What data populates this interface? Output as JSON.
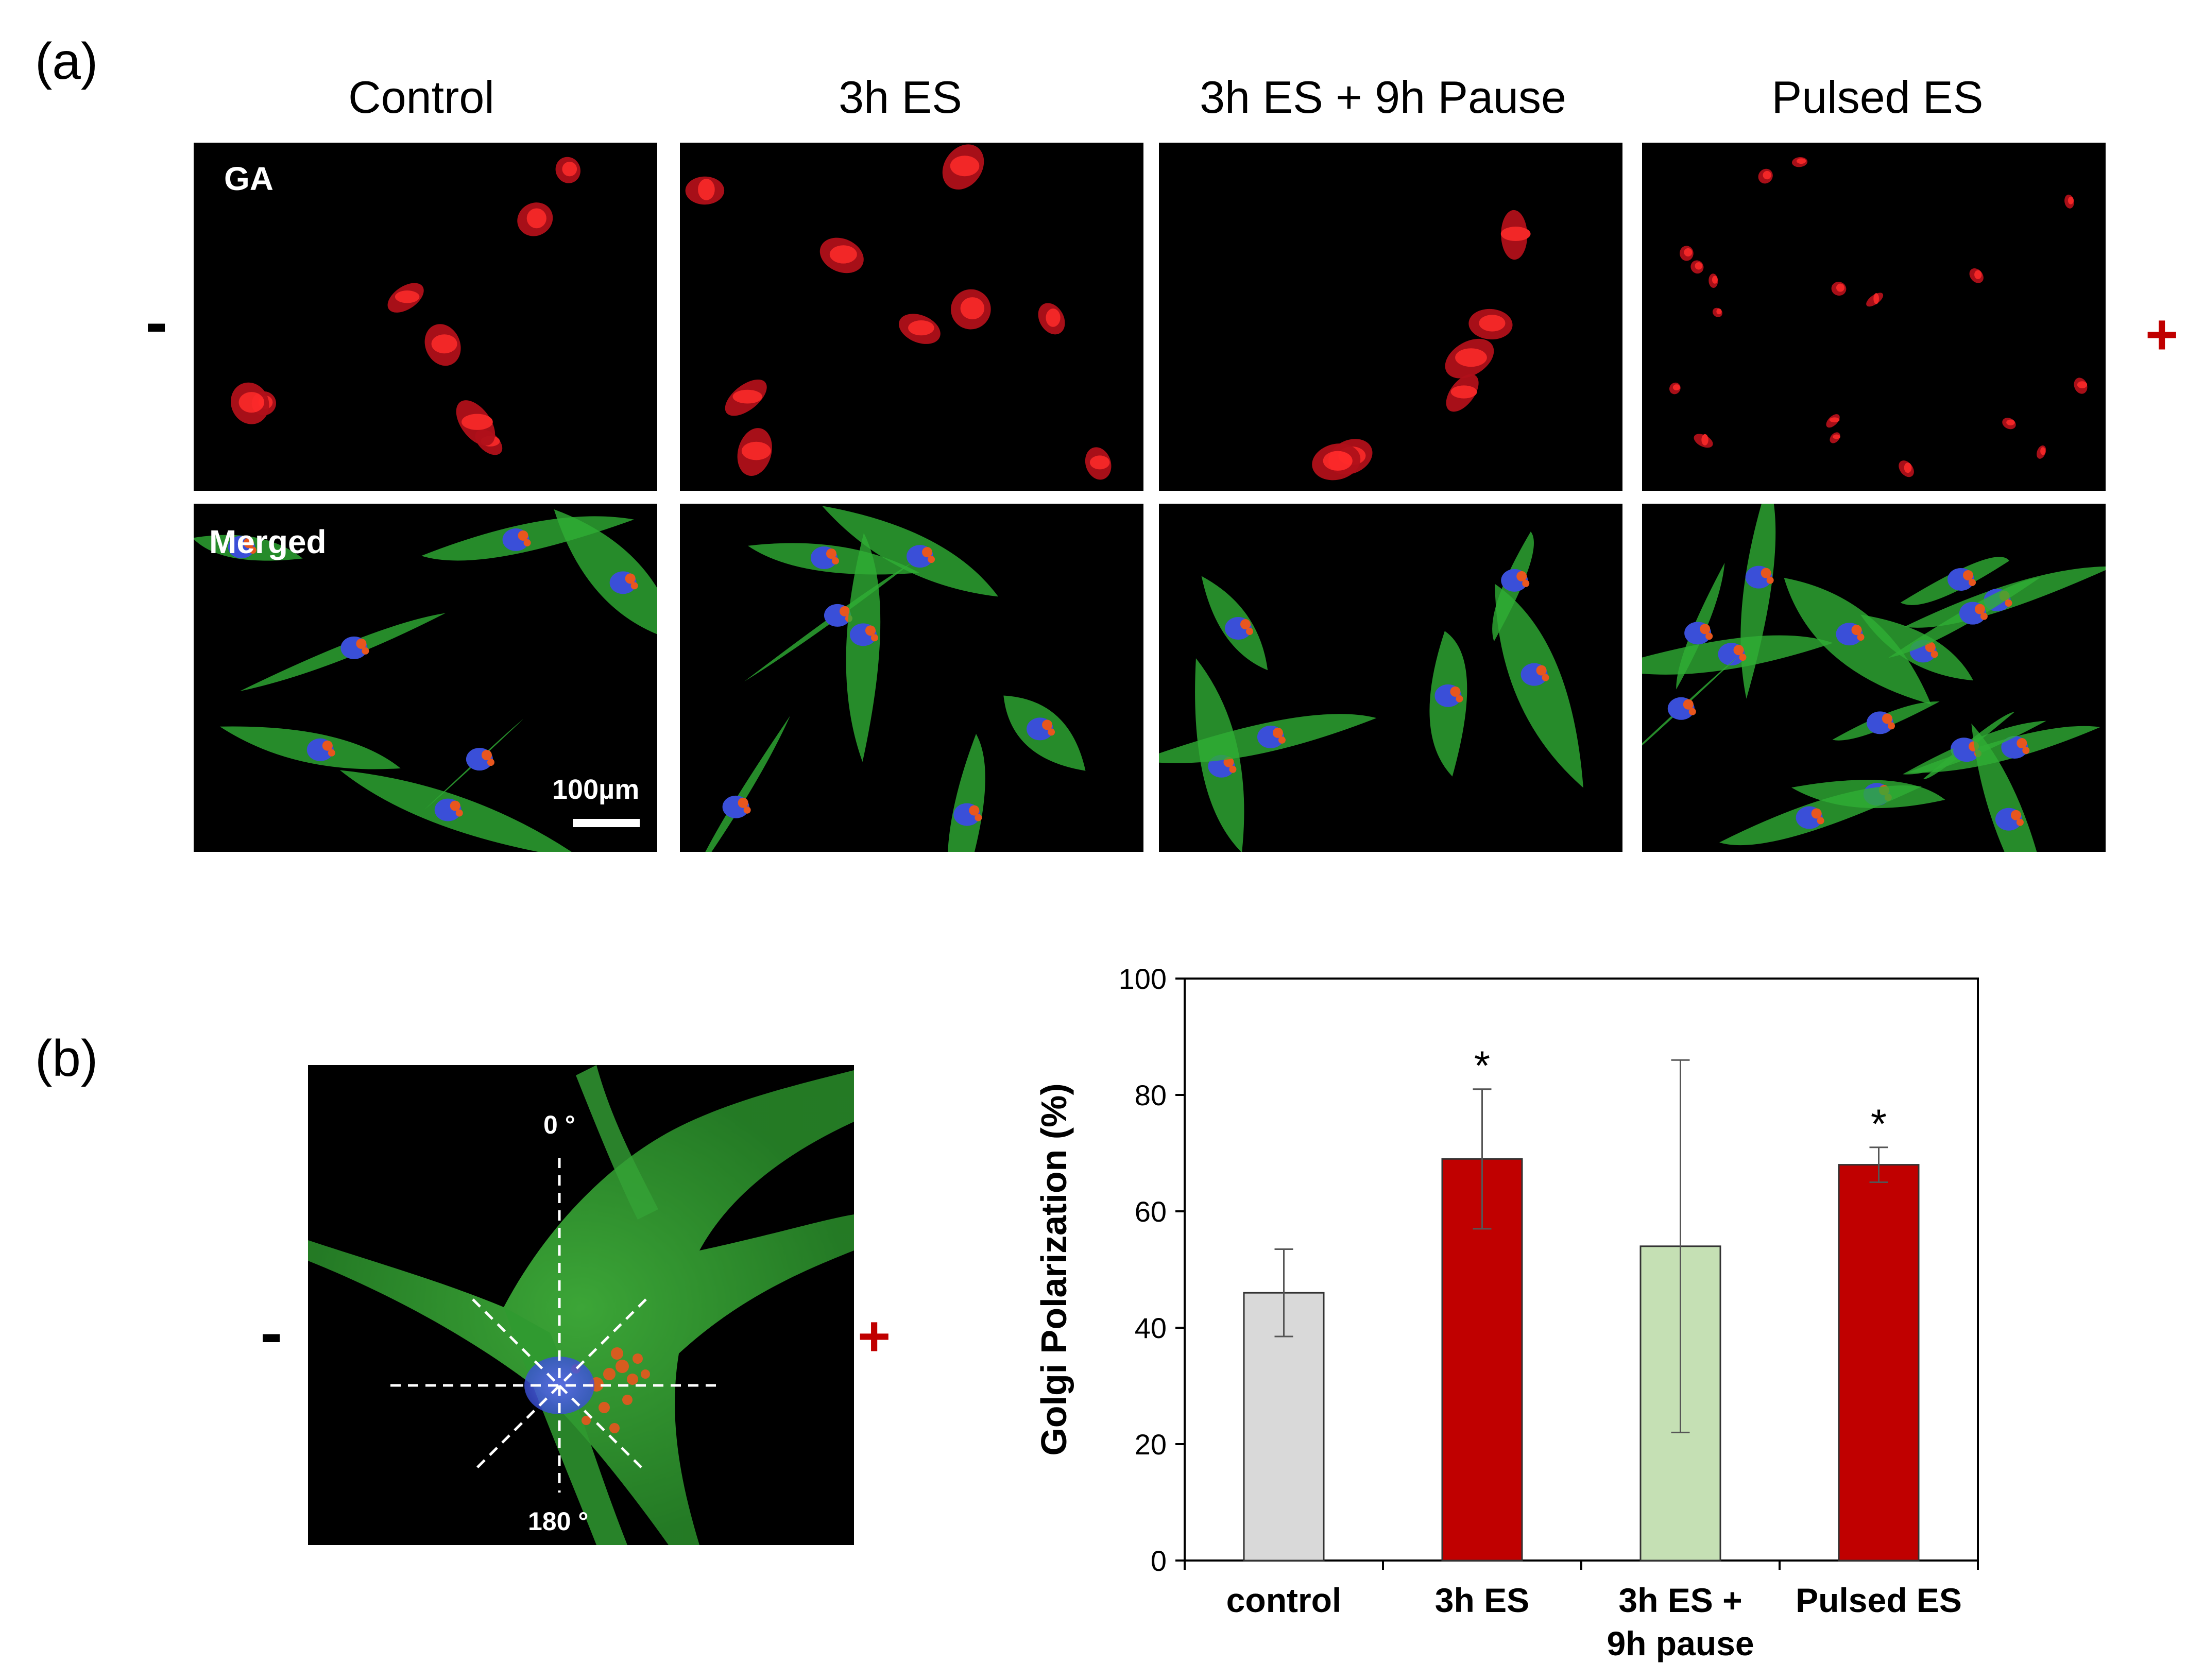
{
  "panel_a": {
    "letter": "(a)",
    "columns": [
      "Control",
      "3h ES",
      "3h ES + 9h Pause",
      "Pulsed ES"
    ],
    "row_labels": [
      "GA",
      "Merged"
    ],
    "negative_pole": "-",
    "positive_pole": "+",
    "scale_bar": "100µm"
  },
  "panel_b": {
    "letter": "(b)",
    "angle_top": "0 °",
    "angle_bottom": "180 °",
    "negative_pole": "-",
    "positive_pole": "+"
  },
  "colors": {
    "golgi_red": "#e0141e",
    "actin_green": "#2fae35",
    "nucleus_blue": "#3a4fd8",
    "pole_positive": "#c00000",
    "bar_control": "#d9d9d9",
    "bar_es": "#c00000",
    "bar_pause": "#c5e0b4"
  },
  "chart_data": {
    "type": "bar",
    "categories": [
      "control",
      "3h ES",
      "3h ES + 9h pause",
      "Pulsed ES"
    ],
    "category_lines": [
      [
        "control"
      ],
      [
        "3h ES"
      ],
      [
        "3h ES +",
        "9h pause"
      ],
      [
        "Pulsed ES"
      ]
    ],
    "values": [
      46,
      69,
      54,
      68
    ],
    "errors": [
      7.5,
      12,
      32,
      3
    ],
    "significance": [
      "",
      "*",
      "",
      "*"
    ],
    "bar_colors": [
      "#d9d9d9",
      "#c00000",
      "#c5e0b4",
      "#c00000"
    ],
    "ylabel": "Golgi Polarization (%)",
    "xlabel": "",
    "ylim": [
      0,
      100
    ],
    "yticks": [
      0,
      20,
      40,
      60,
      80,
      100
    ],
    "grid": false
  }
}
